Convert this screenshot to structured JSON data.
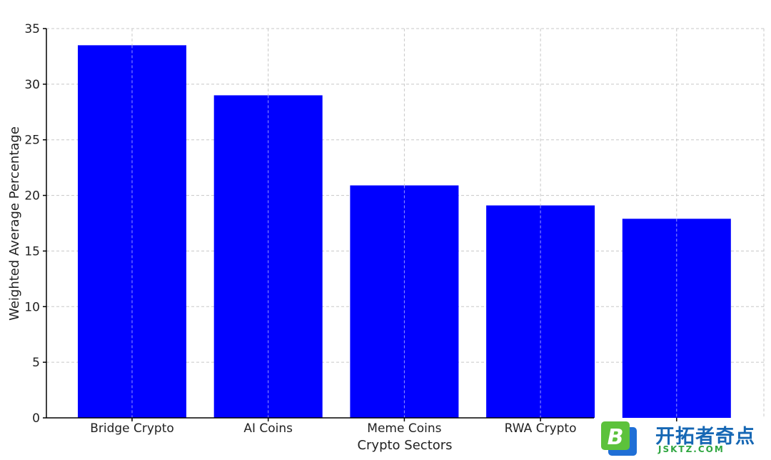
{
  "chart_data": {
    "type": "bar",
    "categories": [
      "Bridge Crypto",
      "AI Coins",
      "Meme Coins",
      "RWA Crypto",
      ""
    ],
    "values": [
      33.5,
      29.0,
      20.9,
      19.1,
      17.9
    ],
    "xlabel": "Crypto Sectors",
    "ylabel": "Weighted Average Percentage",
    "ylim": [
      0,
      35
    ],
    "yticks": [
      0,
      5,
      10,
      15,
      20,
      25,
      30,
      35
    ],
    "grid": true,
    "bar_color": "#0000ff"
  },
  "watermark": {
    "logo_letter": "B",
    "text": "开拓者奇点",
    "url": "JSKTZ.COM",
    "colors": {
      "text": "#1667b4",
      "url": "#2fa640",
      "logo_green": "#5cc23b",
      "logo_blue": "#1f6fd6"
    }
  }
}
